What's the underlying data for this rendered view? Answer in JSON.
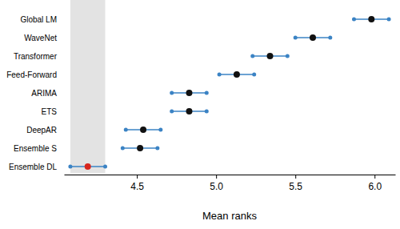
{
  "chart_data": {
    "type": "interval",
    "x_label": "Mean ranks",
    "categories": [
      "Global LM",
      "WaveNet",
      "Transformer",
      "Feed-Forward",
      "ARIMA",
      "ETS",
      "DeepAR",
      "Ensemble S",
      "Ensemble DL"
    ],
    "values": [
      5.98,
      5.61,
      5.34,
      5.13,
      4.83,
      4.83,
      4.54,
      4.52,
      4.19
    ],
    "lower": [
      5.87,
      5.5,
      5.23,
      5.02,
      4.72,
      4.72,
      4.43,
      4.41,
      4.08
    ],
    "upper": [
      6.09,
      5.72,
      5.45,
      5.24,
      4.94,
      4.94,
      4.65,
      4.63,
      4.3
    ],
    "band": [
      4.08,
      4.3
    ],
    "color": "#3b83c4",
    "colors": [
      "#111111",
      "#111111",
      "#111111",
      "#111111",
      "#111111",
      "#111111",
      "#111111",
      "#111111",
      "#d7261e"
    ],
    "xlim": [
      4.04,
      6.13
    ],
    "xticks": [
      4.5,
      {
        "value": 5,
        "label": "5.0"
      },
      5.5,
      {
        "value": 6,
        "label": "6.0"
      }
    ]
  }
}
